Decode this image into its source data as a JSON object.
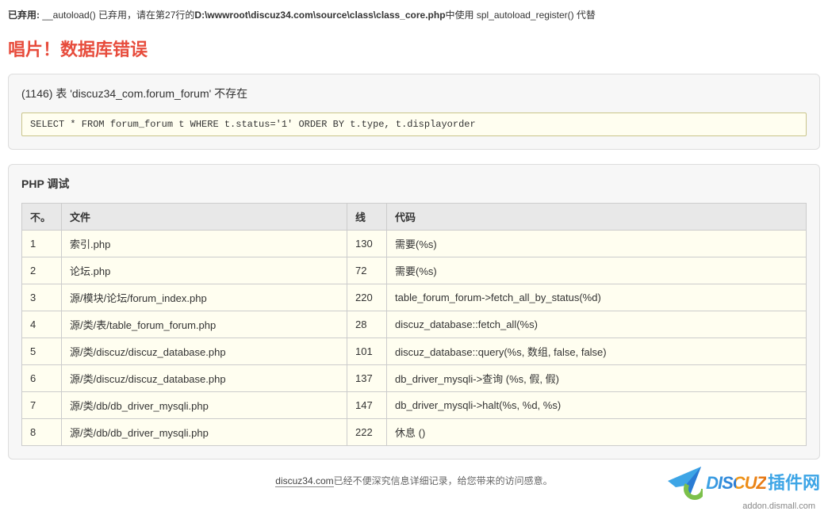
{
  "deprecation": {
    "prefix_bold": "已弃用:",
    "mid1": "  __autoload() 已弃用，请在第27行的",
    "path_bold": "D:\\wwwroot\\discuz34.com\\source\\class\\class_core.php",
    "suffix": "中使用 spl_autoload_register() 代替"
  },
  "error_title": "唱片！数据库错误",
  "error_message": "(1146) 表 'discuz34_com.forum_forum' 不存在",
  "sql_query": "SELECT * FROM forum_forum t WHERE t.status='1' ORDER BY t.type, t.displayorder",
  "debug": {
    "title": "PHP 调试",
    "columns": {
      "no": "不。",
      "file": "文件",
      "line": "线",
      "code": "代码"
    },
    "rows": [
      {
        "no": "1",
        "file": "索引.php",
        "line": "130",
        "code": "需要(%s)"
      },
      {
        "no": "2",
        "file": "论坛.php",
        "line": "72",
        "code": "需要(%s)"
      },
      {
        "no": "3",
        "file": "源/模块/论坛/forum_index.php",
        "line": "220",
        "code": "table_forum_forum->fetch_all_by_status(%d)"
      },
      {
        "no": "4",
        "file": "源/类/表/table_forum_forum.php",
        "line": "28",
        "code": "discuz_database::fetch_all(%s)"
      },
      {
        "no": "5",
        "file": "源/类/discuz/discuz_database.php",
        "line": "101",
        "code": "discuz_database::query(%s, 数组, false, false)"
      },
      {
        "no": "6",
        "file": "源/类/discuz/discuz_database.php",
        "line": "137",
        "code": "db_driver_mysqli->查询 (%s, 假, 假)"
      },
      {
        "no": "7",
        "file": "源/类/db/db_driver_mysqli.php",
        "line": "147",
        "code": "db_driver_mysqli->halt(%s, %d, %s)"
      },
      {
        "no": "8",
        "file": "源/类/db/db_driver_mysqli.php",
        "line": "222",
        "code": "休息 ()"
      }
    ]
  },
  "footer": {
    "site_link": "discuz34.com",
    "text": "已经不便深究信息详细记录，给您带来的访问感意。"
  },
  "watermark": {
    "brand": "DISCUZ",
    "brand_cn": "插件网",
    "sub": "addon.dismall.com"
  },
  "colors": {
    "error_red": "#e74c3c",
    "panel_bg": "#f7f7f7",
    "panel_border": "#dddddd",
    "row_bg": "#fffef0",
    "sql_border": "#c9c58a",
    "th_bg": "#e8e8e8",
    "cell_border": "#cccccc",
    "wm_blue": "#3da5e6",
    "wm_orange": "#f09a1a",
    "wm_green": "#7cc04b"
  }
}
